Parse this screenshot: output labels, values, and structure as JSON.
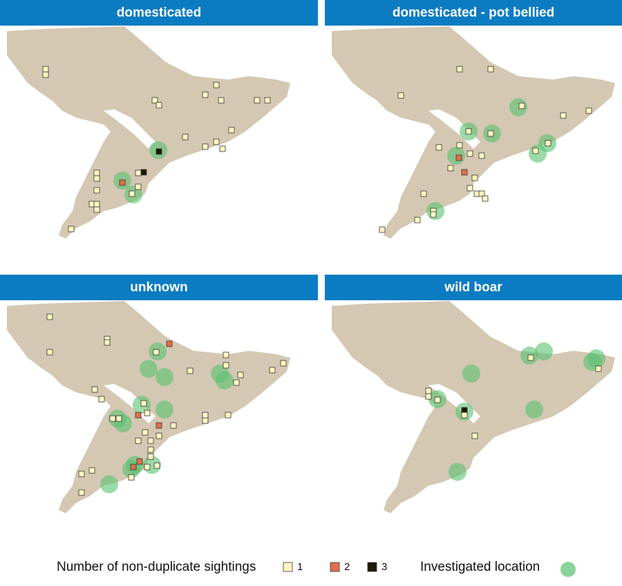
{
  "panels": [
    {
      "title": "domesticated"
    },
    {
      "title": "domesticated - pot bellied"
    },
    {
      "title": "unknown"
    },
    {
      "title": "wild boar"
    }
  ],
  "legend": {
    "title": "Number of non-duplicate sightings",
    "items": [
      {
        "label": 1,
        "color": "#fdf6c3"
      },
      {
        "label": 2,
        "color": "#e0704c"
      },
      {
        "label": 3,
        "color": "#1c1a00"
      }
    ],
    "investigated": {
      "label": "Investigated location",
      "color": "#58c170"
    }
  }
}
